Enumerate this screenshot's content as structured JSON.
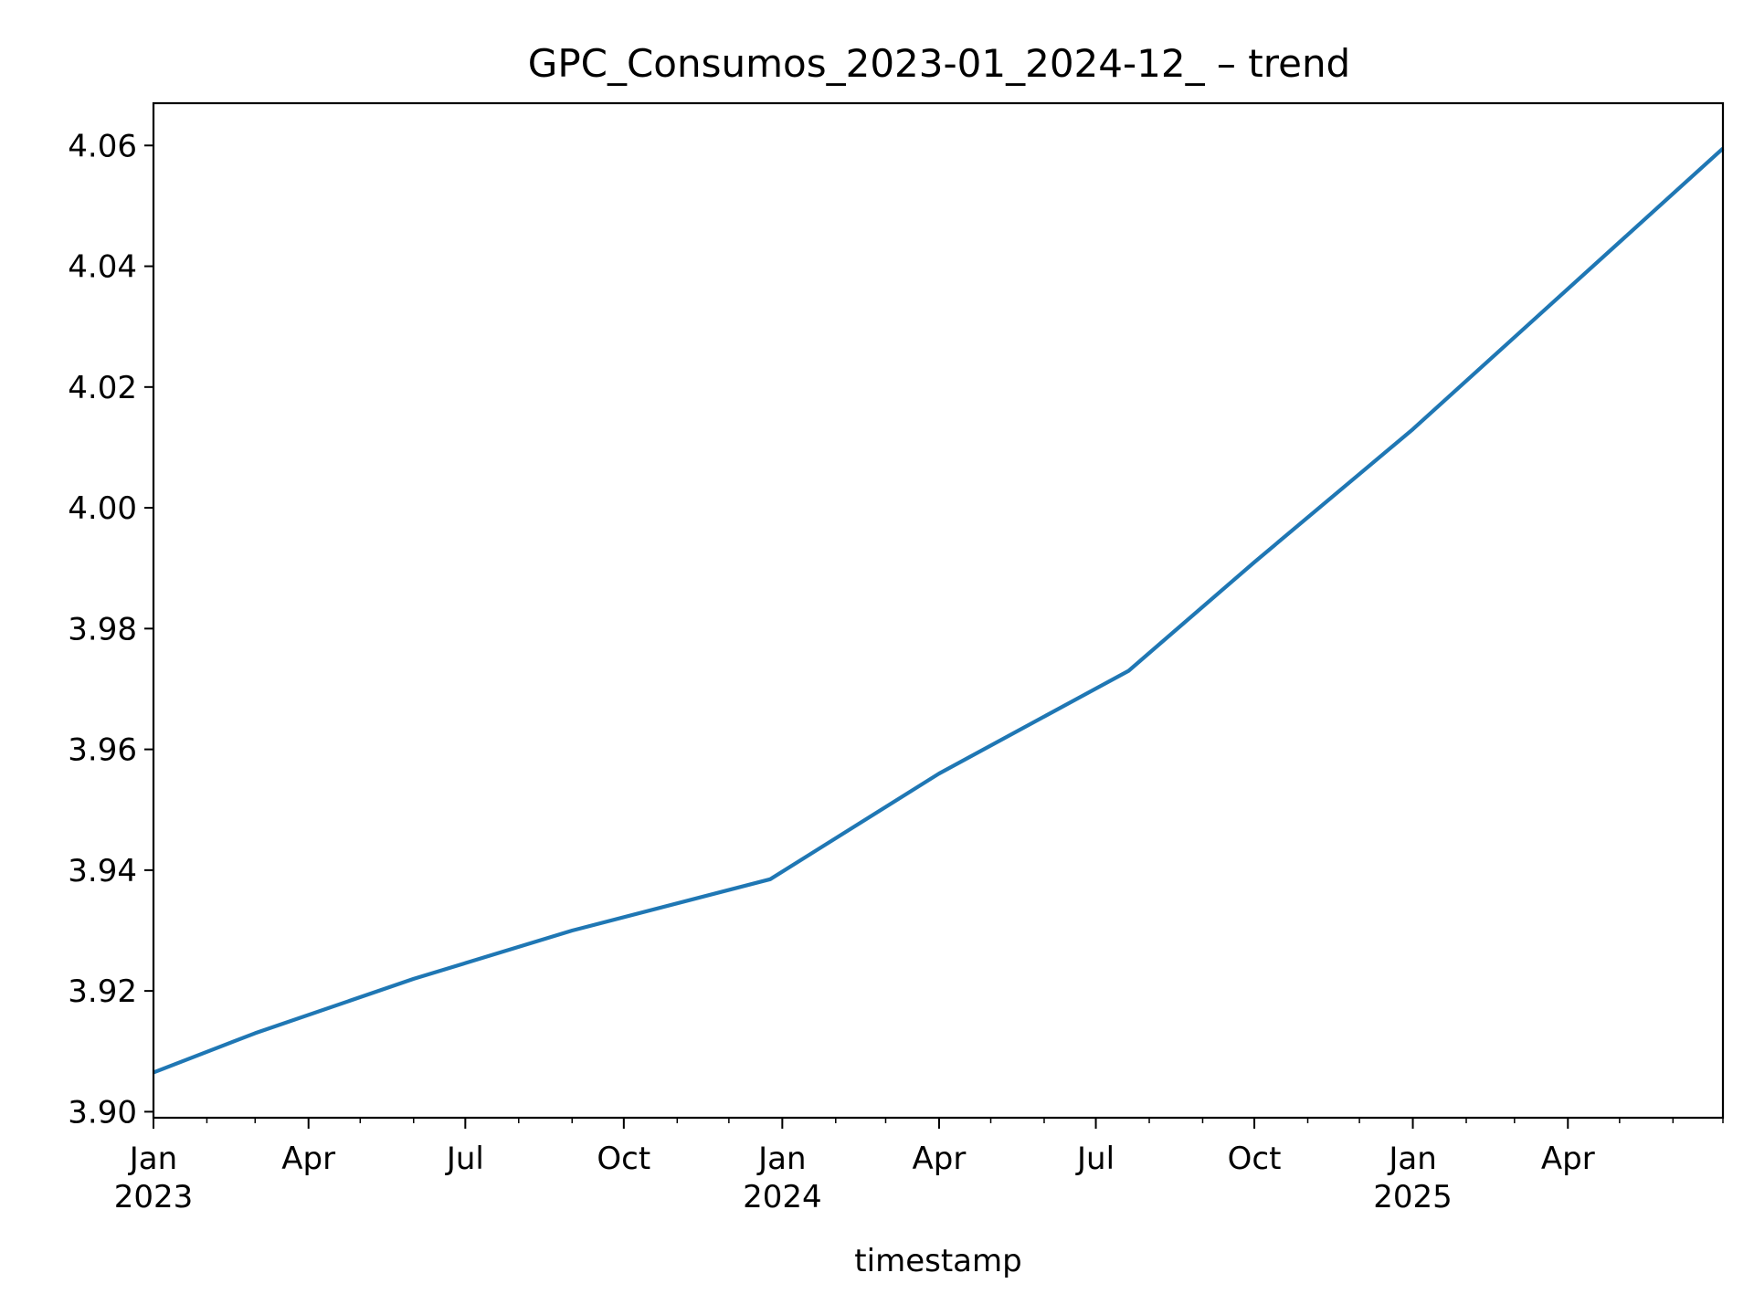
{
  "chart_data": {
    "type": "line",
    "title": "GPC_Consumos_2023-01_2024-12_ – trend",
    "xlabel": "timestamp",
    "ylabel": "",
    "grid": false,
    "legend": "none",
    "xlim": [
      "2023-01-01",
      "2025-06-30"
    ],
    "ylim": [
      3.899,
      4.067
    ],
    "x_ticks": [
      {
        "date": "2023-01-01",
        "label": "Jan",
        "sublabel": "2023"
      },
      {
        "date": "2023-04-01",
        "label": "Apr",
        "sublabel": ""
      },
      {
        "date": "2023-07-01",
        "label": "Jul",
        "sublabel": ""
      },
      {
        "date": "2023-10-01",
        "label": "Oct",
        "sublabel": ""
      },
      {
        "date": "2024-01-01",
        "label": "Jan",
        "sublabel": "2024"
      },
      {
        "date": "2024-04-01",
        "label": "Apr",
        "sublabel": ""
      },
      {
        "date": "2024-07-01",
        "label": "Jul",
        "sublabel": ""
      },
      {
        "date": "2024-10-01",
        "label": "Oct",
        "sublabel": ""
      },
      {
        "date": "2025-01-01",
        "label": "Jan",
        "sublabel": "2025"
      },
      {
        "date": "2025-04-01",
        "label": "Apr",
        "sublabel": ""
      }
    ],
    "y_ticks": [
      "3.90",
      "3.92",
      "3.94",
      "3.96",
      "3.98",
      "4.00",
      "4.02",
      "4.04",
      "4.06"
    ],
    "series": [
      {
        "color": "#1f77b4",
        "x": [
          "2023-01-01",
          "2023-03-01",
          "2023-06-01",
          "2023-09-01",
          "2023-12-25",
          "2024-04-01",
          "2024-07-20",
          "2024-10-01",
          "2025-01-01",
          "2025-06-30"
        ],
        "values": [
          3.9065,
          3.913,
          3.922,
          3.93,
          3.9385,
          3.956,
          3.973,
          3.991,
          4.013,
          4.0595
        ]
      }
    ]
  }
}
